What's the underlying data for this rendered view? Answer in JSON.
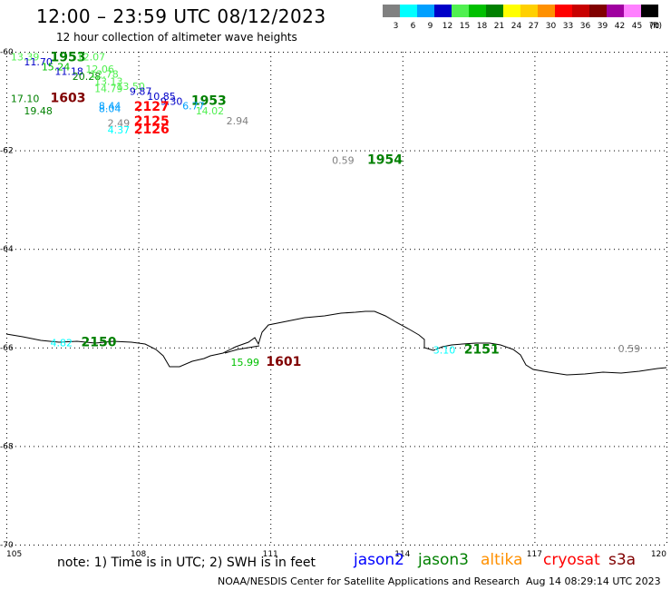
{
  "header": {
    "title": "12:00 – 23:59 UTC 08/12/2023",
    "subtitle": "12 hour collection of altimeter wave heights"
  },
  "scale": {
    "unit": "(ft)",
    "bins": [
      {
        "label": "3",
        "color": "#808080"
      },
      {
        "label": "6",
        "color": "#00ffff"
      },
      {
        "label": "9",
        "color": "#00a0ff"
      },
      {
        "label": "12",
        "color": "#0000c8"
      },
      {
        "label": "15",
        "color": "#50f050"
      },
      {
        "label": "18",
        "color": "#00c000"
      },
      {
        "label": "21",
        "color": "#008000"
      },
      {
        "label": "24",
        "color": "#ffff00"
      },
      {
        "label": "27",
        "color": "#ffd000"
      },
      {
        "label": "30",
        "color": "#ff9000"
      },
      {
        "label": "33",
        "color": "#ff0000"
      },
      {
        "label": "36",
        "color": "#c80000"
      },
      {
        "label": "39",
        "color": "#800000"
      },
      {
        "label": "42",
        "color": "#a000a0"
      },
      {
        "label": "45",
        "color": "#ff80ff"
      },
      {
        "label": "70",
        "color": "#000000"
      }
    ]
  },
  "map": {
    "lon_ticks": [
      "105",
      "108",
      "111",
      "114",
      "117",
      "120"
    ],
    "lat_ticks": [
      "-60",
      "-62",
      "-64",
      "-66",
      "-68",
      "-70"
    ],
    "observations": [
      {
        "text": "13.39",
        "lon": 105.1,
        "lat": -60.1,
        "color": "#50f050"
      },
      {
        "text": "1953",
        "lon": 106.0,
        "lat": -60.12,
        "color": "#008000",
        "time": true
      },
      {
        "text": "12.07",
        "lon": 106.6,
        "lat": -60.1,
        "color": "#50f050"
      },
      {
        "text": "11.70",
        "lon": 105.4,
        "lat": -60.2,
        "color": "#0000c8"
      },
      {
        "text": "15.24",
        "lon": 105.8,
        "lat": -60.3,
        "color": "#00c000"
      },
      {
        "text": "12.06",
        "lon": 106.8,
        "lat": -60.35,
        "color": "#50f050"
      },
      {
        "text": "11.18",
        "lon": 106.1,
        "lat": -60.4,
        "color": "#0000c8"
      },
      {
        "text": "20.28",
        "lon": 106.5,
        "lat": -60.5,
        "color": "#008000"
      },
      {
        "text": "12.78",
        "lon": 106.9,
        "lat": -60.45,
        "color": "#50f050"
      },
      {
        "text": "13.13",
        "lon": 107.0,
        "lat": -60.6,
        "color": "#50f050"
      },
      {
        "text": "13.50",
        "lon": 107.5,
        "lat": -60.7,
        "color": "#50f050"
      },
      {
        "text": "14.79",
        "lon": 107.0,
        "lat": -60.75,
        "color": "#50f050"
      },
      {
        "text": "9.87",
        "lon": 107.8,
        "lat": -60.8,
        "color": "#0000c8"
      },
      {
        "text": "10.85",
        "lon": 108.2,
        "lat": -60.9,
        "color": "#0000c8"
      },
      {
        "text": "9.30",
        "lon": 108.5,
        "lat": -61.0,
        "color": "#0000c8"
      },
      {
        "text": "1953",
        "lon": 109.2,
        "lat": -61.0,
        "color": "#008000",
        "time": true
      },
      {
        "text": "6.77",
        "lon": 109.0,
        "lat": -61.1,
        "color": "#00a0ff"
      },
      {
        "text": "14.02",
        "lon": 109.3,
        "lat": -61.2,
        "color": "#50f050"
      },
      {
        "text": "17.10",
        "lon": 105.1,
        "lat": -60.95,
        "color": "#008000"
      },
      {
        "text": "1603",
        "lon": 106.0,
        "lat": -60.95,
        "color": "#800000",
        "time": true
      },
      {
        "text": "19.48",
        "lon": 105.4,
        "lat": -61.2,
        "color": "#008000"
      },
      {
        "text": "8.44",
        "lon": 107.1,
        "lat": -61.1,
        "color": "#00a0ff"
      },
      {
        "text": "8.04",
        "lon": 107.1,
        "lat": -61.15,
        "color": "#00a0ff"
      },
      {
        "text": "2127",
        "lon": 107.9,
        "lat": -61.12,
        "color": "#ff0000",
        "time": true
      },
      {
        "text": "2.94",
        "lon": 110.0,
        "lat": -61.4,
        "color": "#808080"
      },
      {
        "text": "2.49",
        "lon": 107.3,
        "lat": -61.45,
        "color": "#808080"
      },
      {
        "text": "2125",
        "lon": 107.9,
        "lat": -61.42,
        "color": "#ff0000",
        "time": true
      },
      {
        "text": "4.37",
        "lon": 107.3,
        "lat": -61.58,
        "color": "#00ffff"
      },
      {
        "text": "2126",
        "lon": 107.9,
        "lat": -61.58,
        "color": "#ff0000",
        "time": true
      },
      {
        "text": "0.59",
        "lon": 112.4,
        "lat": -62.2,
        "color": "#808080"
      },
      {
        "text": "1954",
        "lon": 113.2,
        "lat": -62.2,
        "color": "#008000",
        "time": true
      },
      {
        "text": "4.82",
        "lon": 106.0,
        "lat": -65.9,
        "color": "#00ffff"
      },
      {
        "text": "2150",
        "lon": 106.7,
        "lat": -65.9,
        "color": "#008000",
        "time": true
      },
      {
        "text": "3.10",
        "lon": 114.7,
        "lat": -66.05,
        "color": "#00ffff"
      },
      {
        "text": "2151",
        "lon": 115.4,
        "lat": -66.05,
        "color": "#008000",
        "time": true
      },
      {
        "text": "0.59",
        "lon": 118.9,
        "lat": -66.02,
        "color": "#808080"
      },
      {
        "text": "15.99",
        "lon": 110.1,
        "lat": -66.3,
        "color": "#00c000"
      },
      {
        "text": "1601",
        "lon": 110.9,
        "lat": -66.3,
        "color": "#800000",
        "time": true
      }
    ]
  },
  "footer": {
    "note": "note:  1) Time is in UTC;  2) SWH is in feet",
    "missions": [
      {
        "name": "jason2",
        "color": "#0000ff"
      },
      {
        "name": "jason3",
        "color": "#008000"
      },
      {
        "name": "altika",
        "color": "#ff9000"
      },
      {
        "name": "cryosat",
        "color": "#ff0000"
      },
      {
        "name": "s3a",
        "color": "#800000"
      }
    ],
    "credit": "NOAA/NESDIS Center for Satellite Applications and Research",
    "timestamp": "Aug 14 08:29:14 UTC 2023"
  }
}
